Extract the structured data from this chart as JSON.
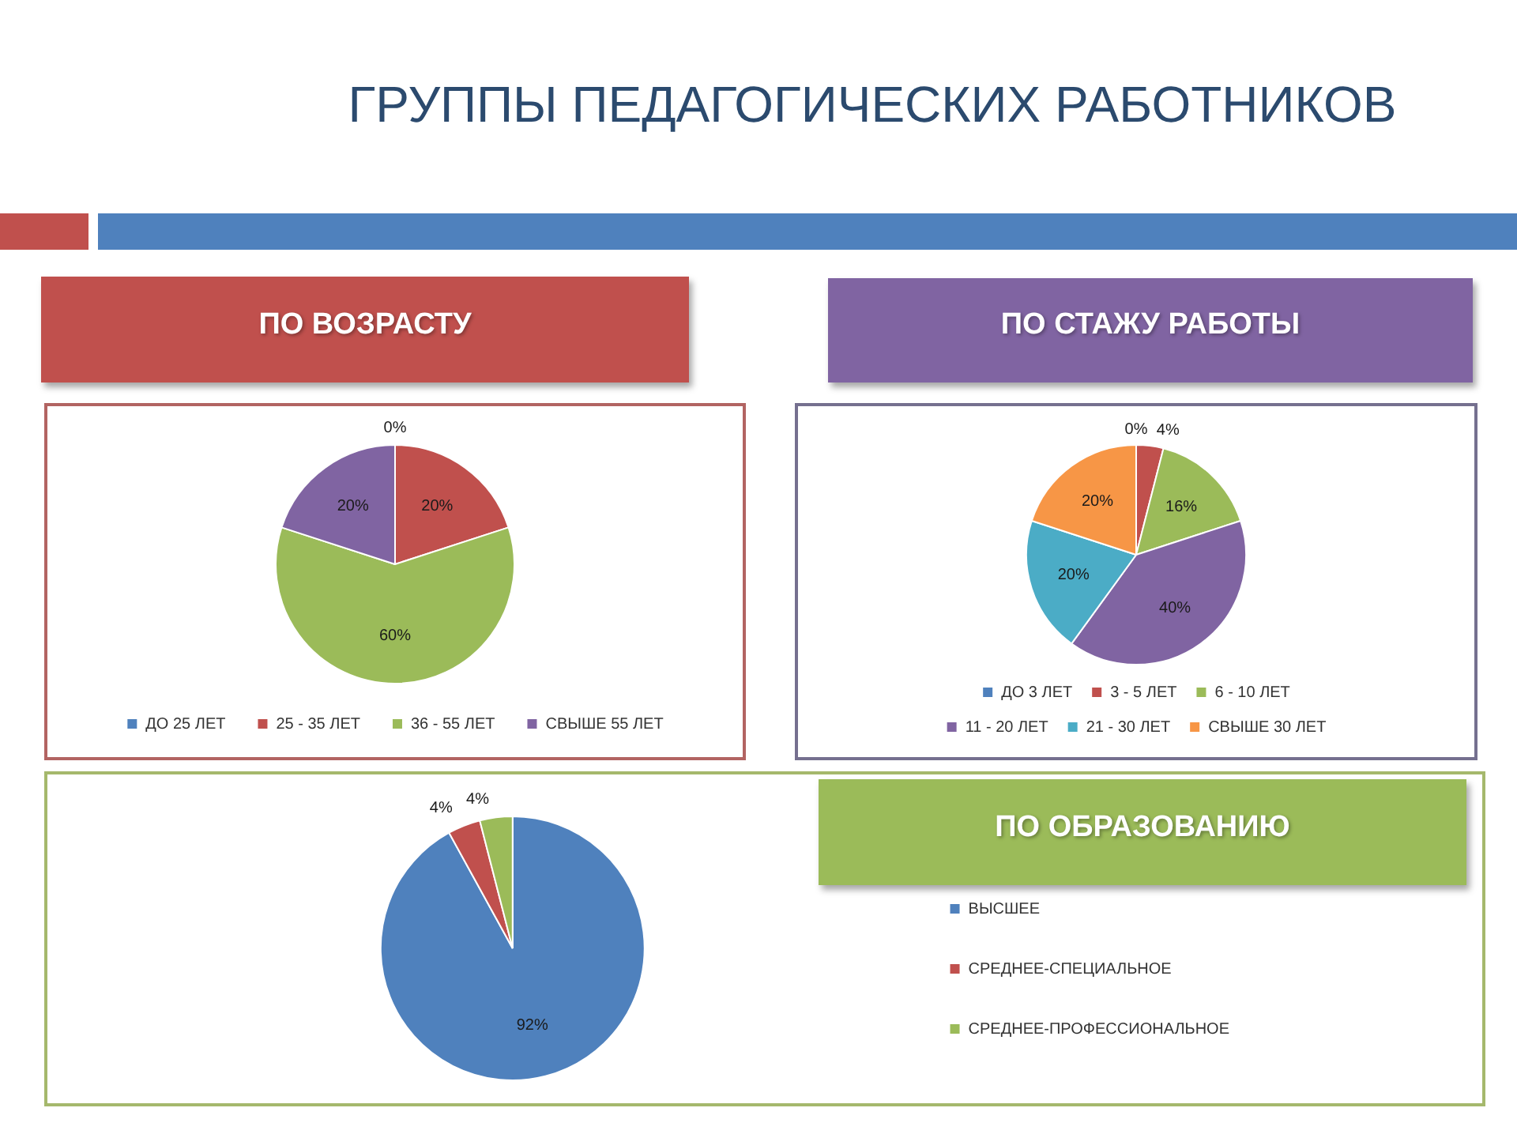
{
  "chart_data": [
    {
      "type": "other",
      "title": "ГРУППЫ ПЕДАГОГИЧЕСКИХ РАБОТНИКОВ"
    },
    {
      "type": "pie",
      "title": "ПО ВОЗРАСТУ",
      "categories": [
        "ДО 25 ЛЕТ",
        "25 - 35 ЛЕТ",
        "36 - 55 ЛЕТ",
        "СВЫШЕ 55 ЛЕТ"
      ],
      "values": [
        0,
        20,
        60,
        20
      ],
      "colors": [
        "#4f81bd",
        "#c0504d",
        "#9bbb59",
        "#8064a2"
      ],
      "value_labels": [
        "0%",
        "20%",
        "60%",
        "20%"
      ],
      "legend": "bottom"
    },
    {
      "type": "pie",
      "title": "ПО СТАЖУ РАБОТЫ",
      "categories": [
        "ДО 3 ЛЕТ",
        "3 - 5 ЛЕТ",
        "6 - 10 ЛЕТ",
        "11 - 20 ЛЕТ",
        "21 - 30 ЛЕТ",
        "СВЫШЕ 30 ЛЕТ"
      ],
      "values": [
        0,
        4,
        16,
        40,
        20,
        20
      ],
      "colors": [
        "#4f81bd",
        "#c0504d",
        "#9bbb59",
        "#8064a2",
        "#4bacc6",
        "#f79646"
      ],
      "value_labels": [
        "0%",
        "4%",
        "16%",
        "40%",
        "20%",
        "20%"
      ],
      "legend": "bottom"
    },
    {
      "type": "pie",
      "title": "ПО ОБРАЗОВАНИЮ",
      "categories": [
        "ВЫСШЕЕ",
        "СРЕДНЕЕ-СПЕЦИАЛЬНОЕ",
        "СРЕДНЕЕ-ПРОФЕССИОНАЛЬНОЕ"
      ],
      "values": [
        92,
        4,
        4
      ],
      "colors": [
        "#4f81bd",
        "#c0504d",
        "#9bbb59"
      ],
      "value_labels": [
        "92%",
        "4%",
        "4%"
      ],
      "legend": "right"
    }
  ]
}
